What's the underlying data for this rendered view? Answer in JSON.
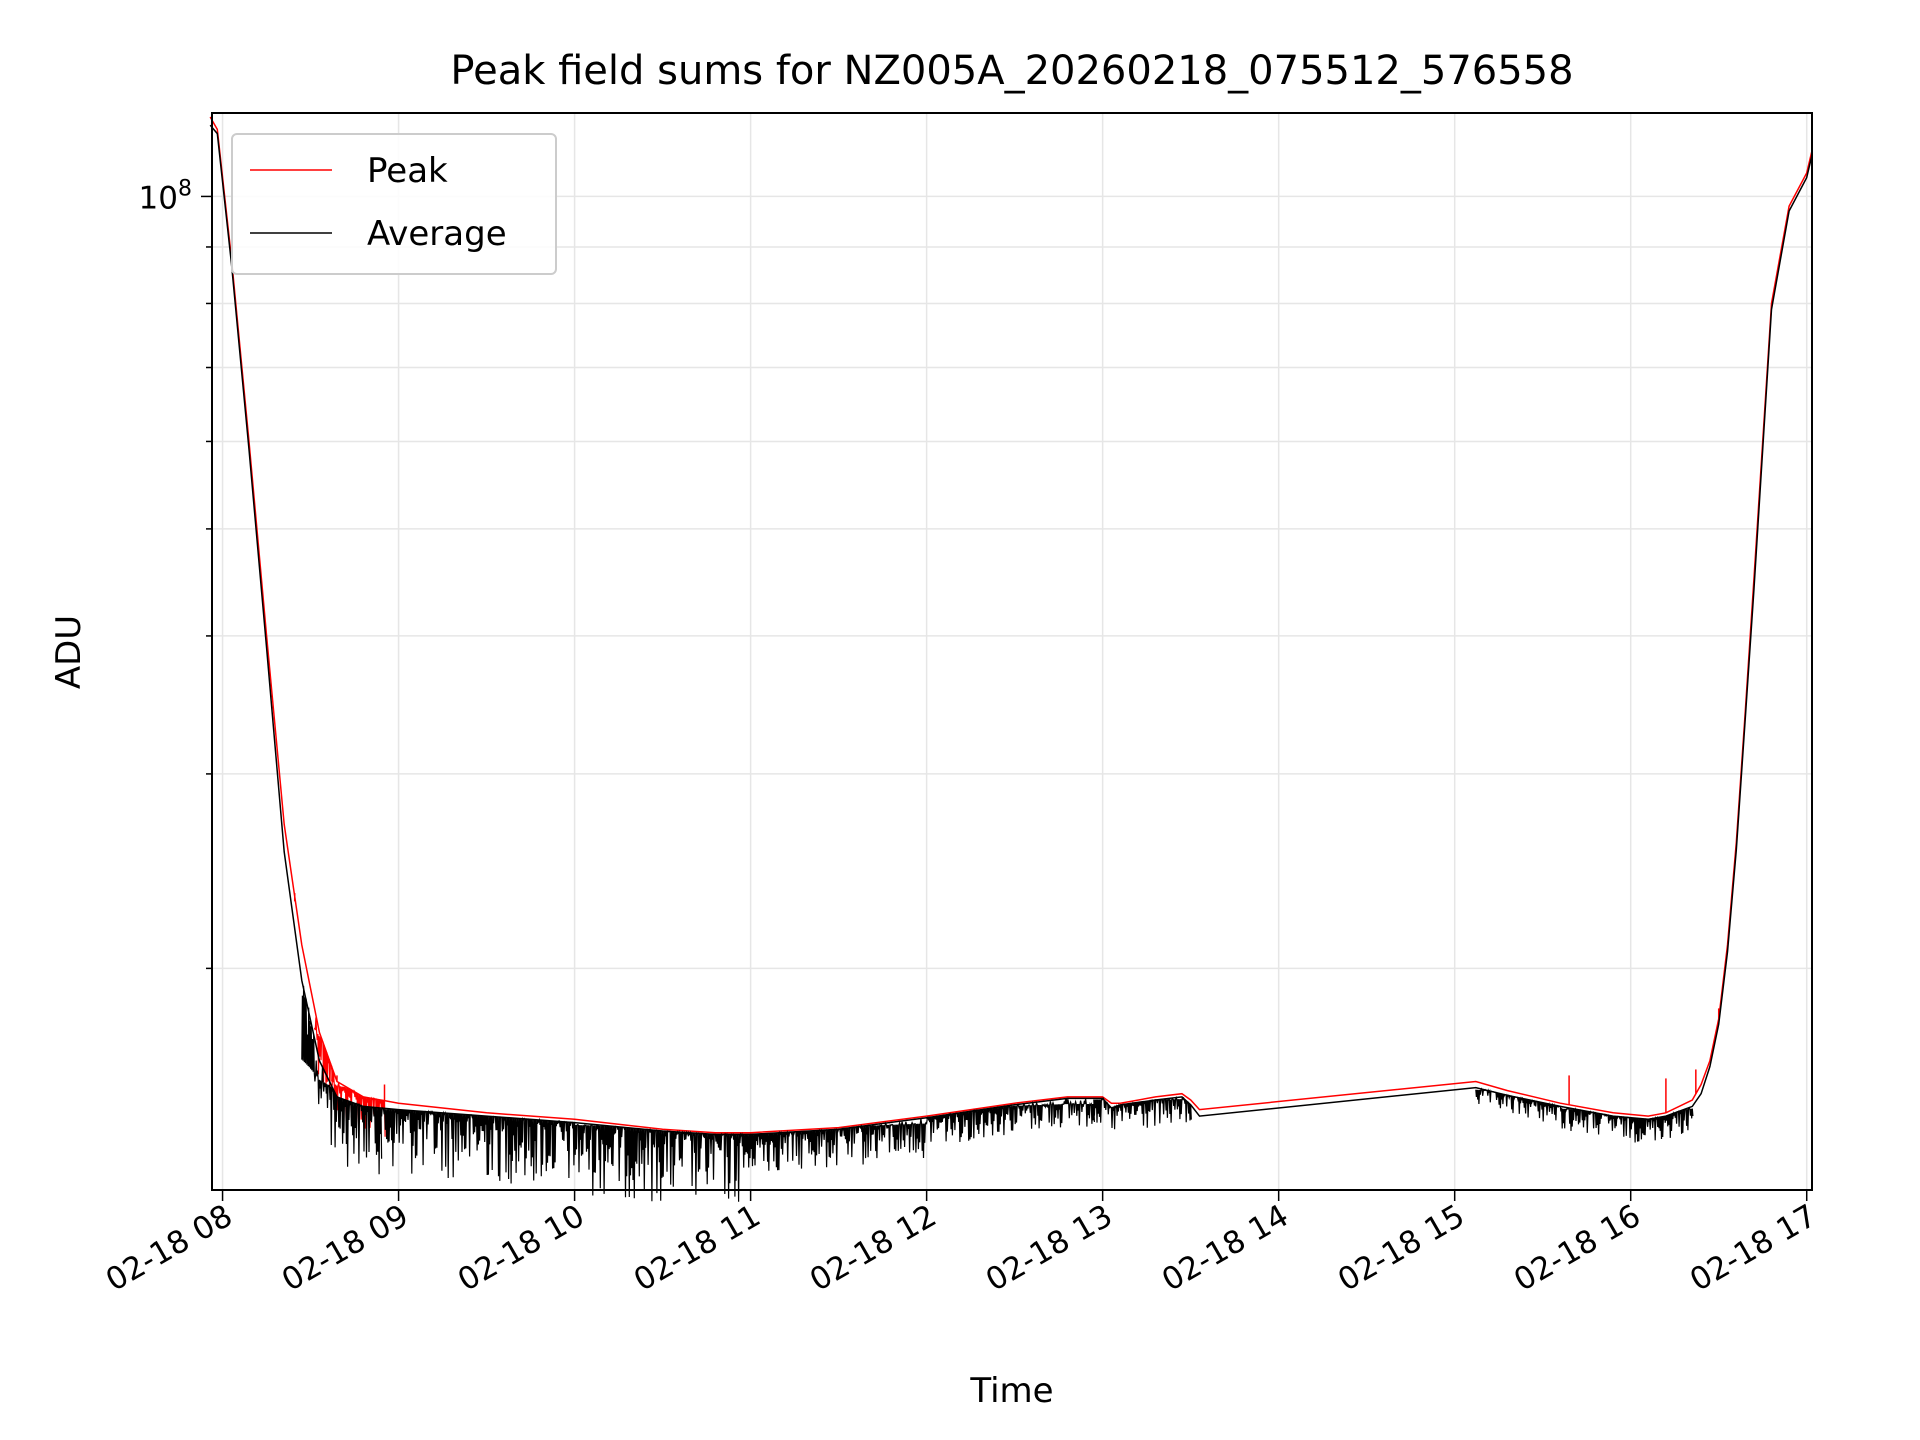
{
  "chart_data": {
    "type": "line",
    "title": "Peak field sums for NZ005A_20260218_075512_576558",
    "xlabel": "Time",
    "ylabel": "ADU",
    "yscale": "log",
    "ylim": [
      12600000,
      119000000
    ],
    "xlim": [
      7.94,
      17.03
    ],
    "grid": true,
    "legend_position": "top-left",
    "x_ticks": [
      {
        "value": 8,
        "label": "02-18 08"
      },
      {
        "value": 9,
        "label": "02-18 09"
      },
      {
        "value": 10,
        "label": "02-18 10"
      },
      {
        "value": 11,
        "label": "02-18 11"
      },
      {
        "value": 12,
        "label": "02-18 12"
      },
      {
        "value": 13,
        "label": "02-18 13"
      },
      {
        "value": 14,
        "label": "02-18 14"
      },
      {
        "value": 15,
        "label": "02-18 15"
      },
      {
        "value": 16,
        "label": "02-18 16"
      },
      {
        "value": 17,
        "label": "02-18 17"
      }
    ],
    "y_major_ticks": [
      {
        "value": 100000000,
        "label_base": "10",
        "label_exp": "8"
      }
    ],
    "y_minor_ticks": [
      20000000,
      30000000,
      40000000,
      50000000,
      60000000,
      70000000,
      80000000,
      90000000
    ],
    "series": [
      {
        "name": "Peak",
        "color": "#ff0000",
        "x": [
          7.93,
          7.97,
          8.05,
          8.15,
          8.25,
          8.35,
          8.45,
          8.55,
          8.65,
          8.8,
          9.0,
          9.5,
          10.0,
          10.5,
          10.8,
          11.0,
          11.5,
          12.0,
          12.5,
          12.8,
          13.0,
          13.05,
          13.1,
          13.3,
          13.45,
          13.5,
          13.55,
          15.12,
          15.3,
          15.6,
          15.9,
          16.1,
          16.2,
          16.35,
          16.4,
          16.45,
          16.5,
          16.55,
          16.6,
          16.65,
          16.7,
          16.75,
          16.8,
          16.9,
          17.0,
          17.03
        ],
        "y": [
          118000000,
          115000000,
          88000000,
          60000000,
          40000000,
          27000000,
          21000000,
          17500000,
          15800000,
          15300000,
          15100000,
          14800000,
          14600000,
          14300000,
          14200000,
          14200000,
          14350000,
          14700000,
          15100000,
          15300000,
          15300000,
          15100000,
          15100000,
          15300000,
          15400000,
          15200000,
          14900000,
          15800000,
          15500000,
          15100000,
          14800000,
          14700000,
          14800000,
          15200000,
          15700000,
          16500000,
          18000000,
          21000000,
          26000000,
          34000000,
          45000000,
          60000000,
          80000000,
          98000000,
          105000000,
          110000000
        ],
        "noise_ranges": [
          {
            "x_start": 8.52,
            "x_end": 8.62,
            "y_top": 17300000,
            "amplitude": 0.1
          },
          {
            "x_start": 8.62,
            "x_end": 8.92,
            "y_top": 15600000,
            "amplitude": 0.08
          }
        ],
        "spikes": [
          {
            "x": 8.41,
            "y": 23000000
          },
          {
            "x": 8.62,
            "y": 16200000
          },
          {
            "x": 8.65,
            "y": 16000000
          },
          {
            "x": 8.92,
            "y": 15700000
          },
          {
            "x": 15.65,
            "y": 16000000
          },
          {
            "x": 16.2,
            "y": 15900000
          },
          {
            "x": 16.37,
            "y": 16200000
          },
          {
            "x": 16.5,
            "y": 18400000
          }
        ]
      },
      {
        "name": "Average",
        "color": "#000000",
        "x": [
          7.93,
          7.97,
          8.05,
          8.15,
          8.25,
          8.35,
          8.45,
          8.55,
          8.65,
          8.8,
          9.0,
          9.5,
          10.0,
          10.5,
          10.8,
          11.0,
          11.5,
          12.0,
          12.5,
          12.8,
          13.0,
          13.05,
          13.1,
          13.3,
          13.45,
          13.5,
          13.55,
          15.12,
          15.3,
          15.6,
          15.9,
          16.1,
          16.2,
          16.35,
          16.4,
          16.45,
          16.5,
          16.55,
          16.6,
          16.65,
          16.7,
          16.75,
          16.8,
          16.9,
          17.0,
          17.03
        ],
        "y": [
          116000000,
          114000000,
          87000000,
          59000000,
          39000000,
          25500000,
          19500000,
          16500000,
          15300000,
          15000000,
          14900000,
          14700000,
          14500000,
          14250000,
          14150000,
          14150000,
          14300000,
          14650000,
          15050000,
          15250000,
          15250000,
          14950000,
          15050000,
          15200000,
          15300000,
          15050000,
          14700000,
          15600000,
          15350000,
          15000000,
          14700000,
          14600000,
          14700000,
          15000000,
          15400000,
          16300000,
          17800000,
          20700000,
          25600000,
          33500000,
          44000000,
          59000000,
          79000000,
          97000000,
          104000000,
          109000000
        ],
        "noise_ranges": [
          {
            "x_start": 8.45,
            "x_end": 8.9,
            "y_top": 15600000,
            "amplitude": 0.13
          },
          {
            "x_start": 8.9,
            "x_end": 10.0,
            "y_top": 14900000,
            "amplitude": 0.13
          },
          {
            "x_start": 10.0,
            "x_end": 11.0,
            "y_top": 14400000,
            "amplitude": 0.14
          },
          {
            "x_start": 11.0,
            "x_end": 12.0,
            "y_top": 14400000,
            "amplitude": 0.08
          },
          {
            "x_start": 12.0,
            "x_end": 12.95,
            "y_top": 15000000,
            "amplitude": 0.06
          },
          {
            "x_start": 12.95,
            "x_end": 13.5,
            "y_top": 15200000,
            "amplitude": 0.06
          },
          {
            "x_start": 15.12,
            "x_end": 15.6,
            "y_top": 15500000,
            "amplitude": 0.04
          },
          {
            "x_start": 15.6,
            "x_end": 16.35,
            "y_top": 14900000,
            "amplitude": 0.05
          }
        ],
        "spikes": []
      }
    ]
  }
}
